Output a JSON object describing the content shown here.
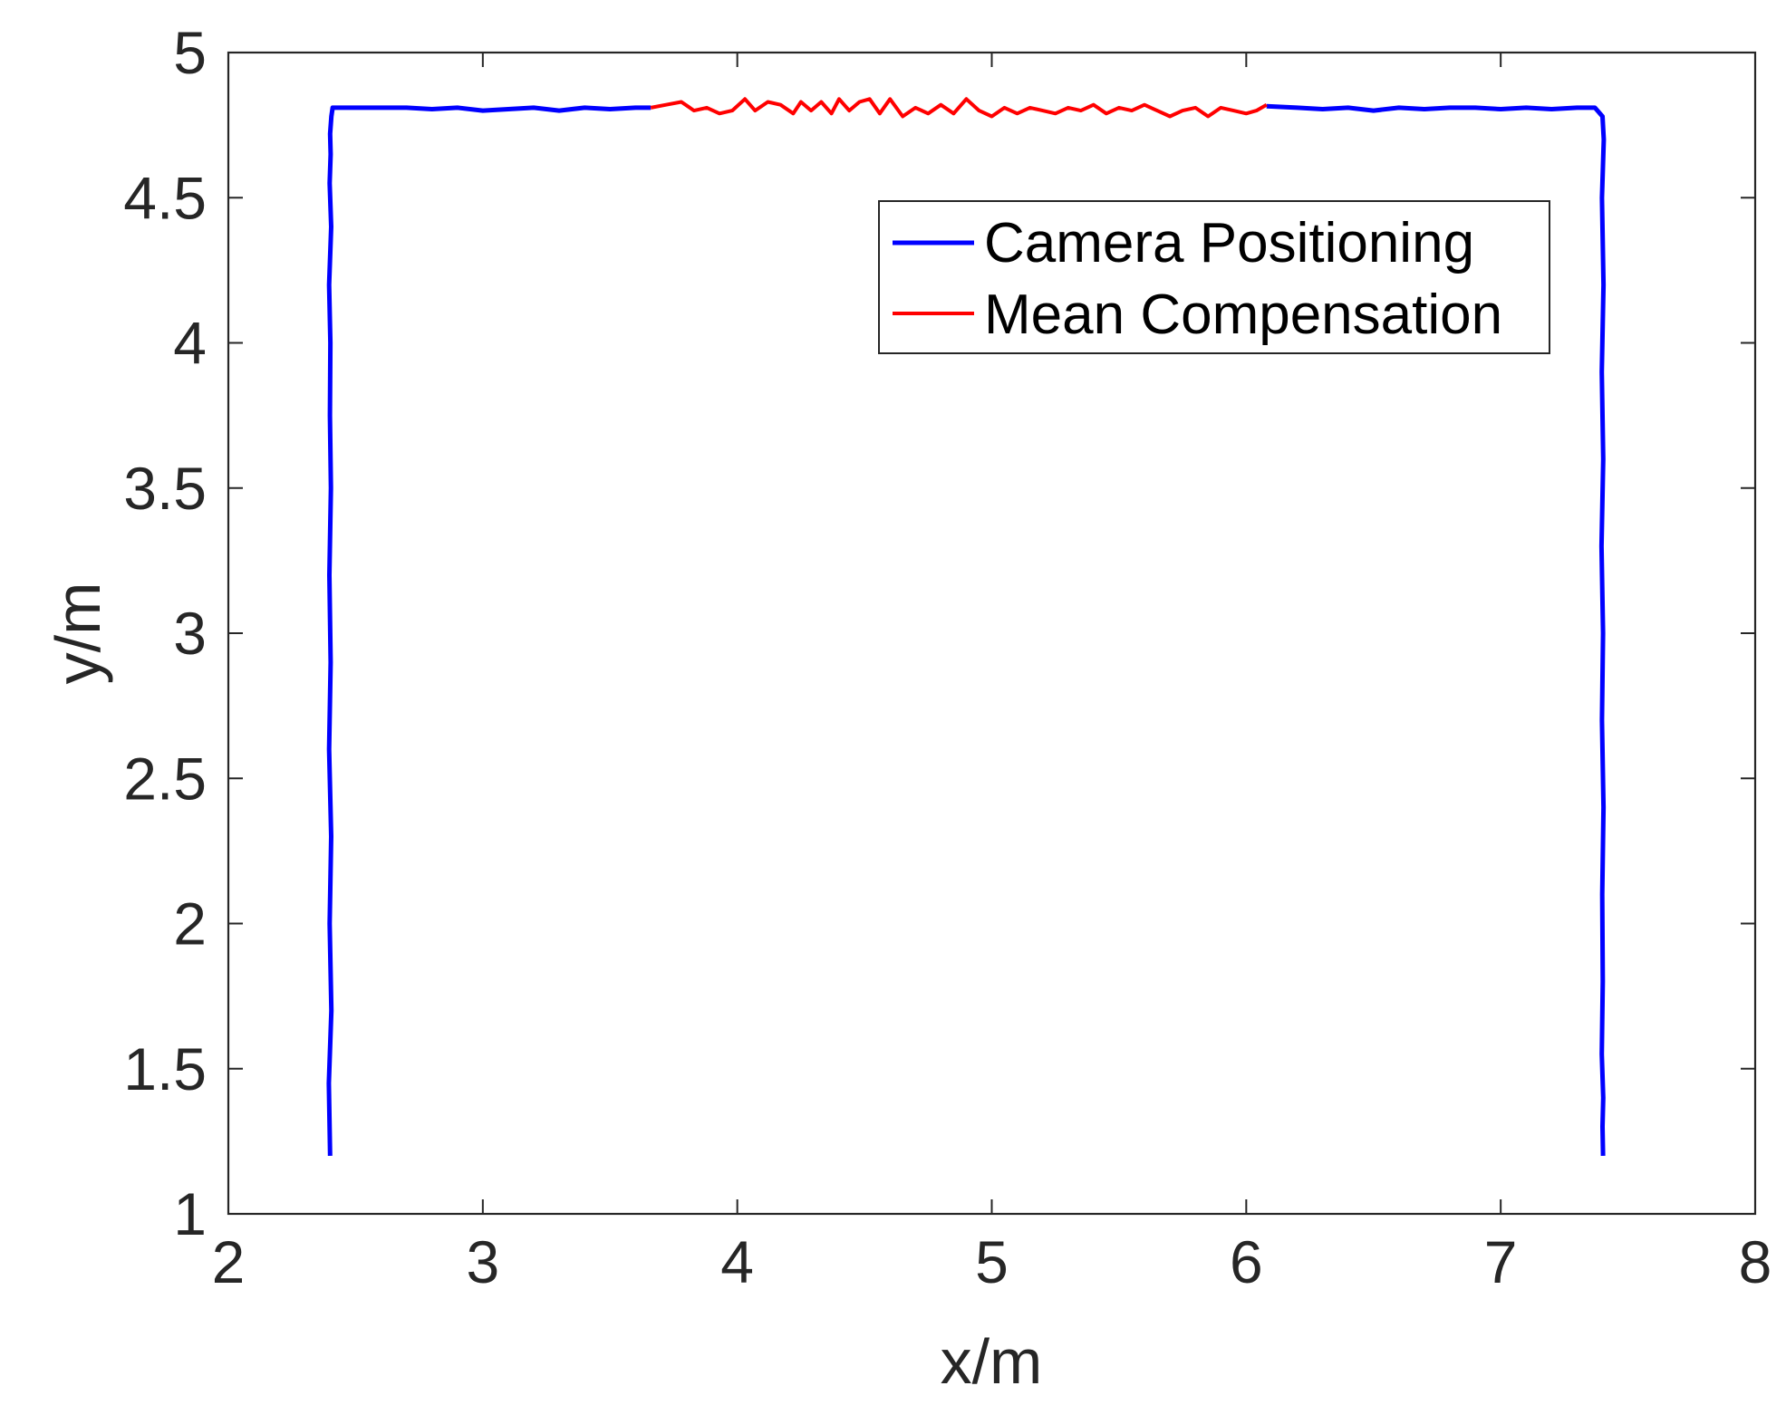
{
  "chart_data": {
    "type": "line",
    "title": "",
    "xlabel": "x/m",
    "ylabel": "y/m",
    "xlim": [
      2,
      8
    ],
    "ylim": [
      1,
      5
    ],
    "xticks": [
      "2",
      "3",
      "4",
      "5",
      "6",
      "7",
      "8"
    ],
    "yticks": [
      "1",
      "1.5",
      "2",
      "2.5",
      "3",
      "3.5",
      "4",
      "4.5",
      "5"
    ],
    "grid": false,
    "legend_position": "top-right",
    "series": [
      {
        "name": "Camera Positioning",
        "color": "#0000ff",
        "segments": [
          {
            "x": [
              2.4,
              2.395,
              2.405,
              2.398,
              2.404,
              2.396,
              2.402,
              2.397,
              2.403,
              2.399,
              2.401,
              2.396,
              2.404,
              2.398,
              2.402,
              2.4,
              2.405,
              2.41,
              2.5,
              2.6,
              2.7,
              2.8,
              2.9,
              3.0,
              3.1,
              3.2,
              3.3,
              3.4,
              3.5,
              3.6,
              3.66
            ],
            "y": [
              1.2,
              1.45,
              1.7,
              2.0,
              2.3,
              2.6,
              2.9,
              3.2,
              3.5,
              3.75,
              4.0,
              4.2,
              4.4,
              4.55,
              4.65,
              4.72,
              4.78,
              4.81,
              4.81,
              4.81,
              4.81,
              4.805,
              4.81,
              4.8,
              4.805,
              4.81,
              4.8,
              4.81,
              4.805,
              4.81,
              4.81
            ]
          },
          {
            "x": [
              6.08,
              6.2,
              6.3,
              6.4,
              6.5,
              6.6,
              6.7,
              6.8,
              6.9,
              7.0,
              7.1,
              7.2,
              7.3,
              7.37,
              7.4,
              7.405,
              7.398,
              7.404,
              7.397,
              7.403,
              7.396,
              7.402,
              7.398,
              7.404,
              7.399,
              7.401,
              7.397,
              7.403,
              7.4,
              7.402
            ],
            "y": [
              4.815,
              4.81,
              4.805,
              4.81,
              4.8,
              4.81,
              4.805,
              4.81,
              4.81,
              4.805,
              4.81,
              4.805,
              4.81,
              4.81,
              4.78,
              4.7,
              4.5,
              4.2,
              3.9,
              3.6,
              3.3,
              3.0,
              2.7,
              2.4,
              2.1,
              1.8,
              1.55,
              1.4,
              1.3,
              1.2
            ]
          }
        ]
      },
      {
        "name": "Mean Compensation",
        "color": "#ff0000",
        "segments": [
          {
            "x": [
              3.66,
              3.72,
              3.78,
              3.83,
              3.88,
              3.93,
              3.98,
              4.03,
              4.07,
              4.12,
              4.17,
              4.22,
              4.25,
              4.29,
              4.33,
              4.37,
              4.4,
              4.44,
              4.48,
              4.52,
              4.56,
              4.6,
              4.65,
              4.7,
              4.75,
              4.8,
              4.85,
              4.9,
              4.95,
              5.0,
              5.05,
              5.1,
              5.15,
              5.2,
              5.25,
              5.3,
              5.35,
              5.4,
              5.45,
              5.5,
              5.55,
              5.6,
              5.65,
              5.7,
              5.75,
              5.8,
              5.85,
              5.9,
              5.95,
              6.0,
              6.04,
              6.08
            ],
            "y": [
              4.81,
              4.82,
              4.83,
              4.8,
              4.81,
              4.79,
              4.8,
              4.84,
              4.8,
              4.83,
              4.82,
              4.79,
              4.83,
              4.8,
              4.83,
              4.79,
              4.84,
              4.8,
              4.83,
              4.84,
              4.79,
              4.84,
              4.78,
              4.81,
              4.79,
              4.82,
              4.79,
              4.84,
              4.8,
              4.78,
              4.81,
              4.79,
              4.81,
              4.8,
              4.79,
              4.81,
              4.8,
              4.82,
              4.79,
              4.81,
              4.8,
              4.82,
              4.8,
              4.78,
              4.8,
              4.81,
              4.78,
              4.81,
              4.8,
              4.79,
              4.8,
              4.82
            ]
          }
        ]
      }
    ]
  }
}
